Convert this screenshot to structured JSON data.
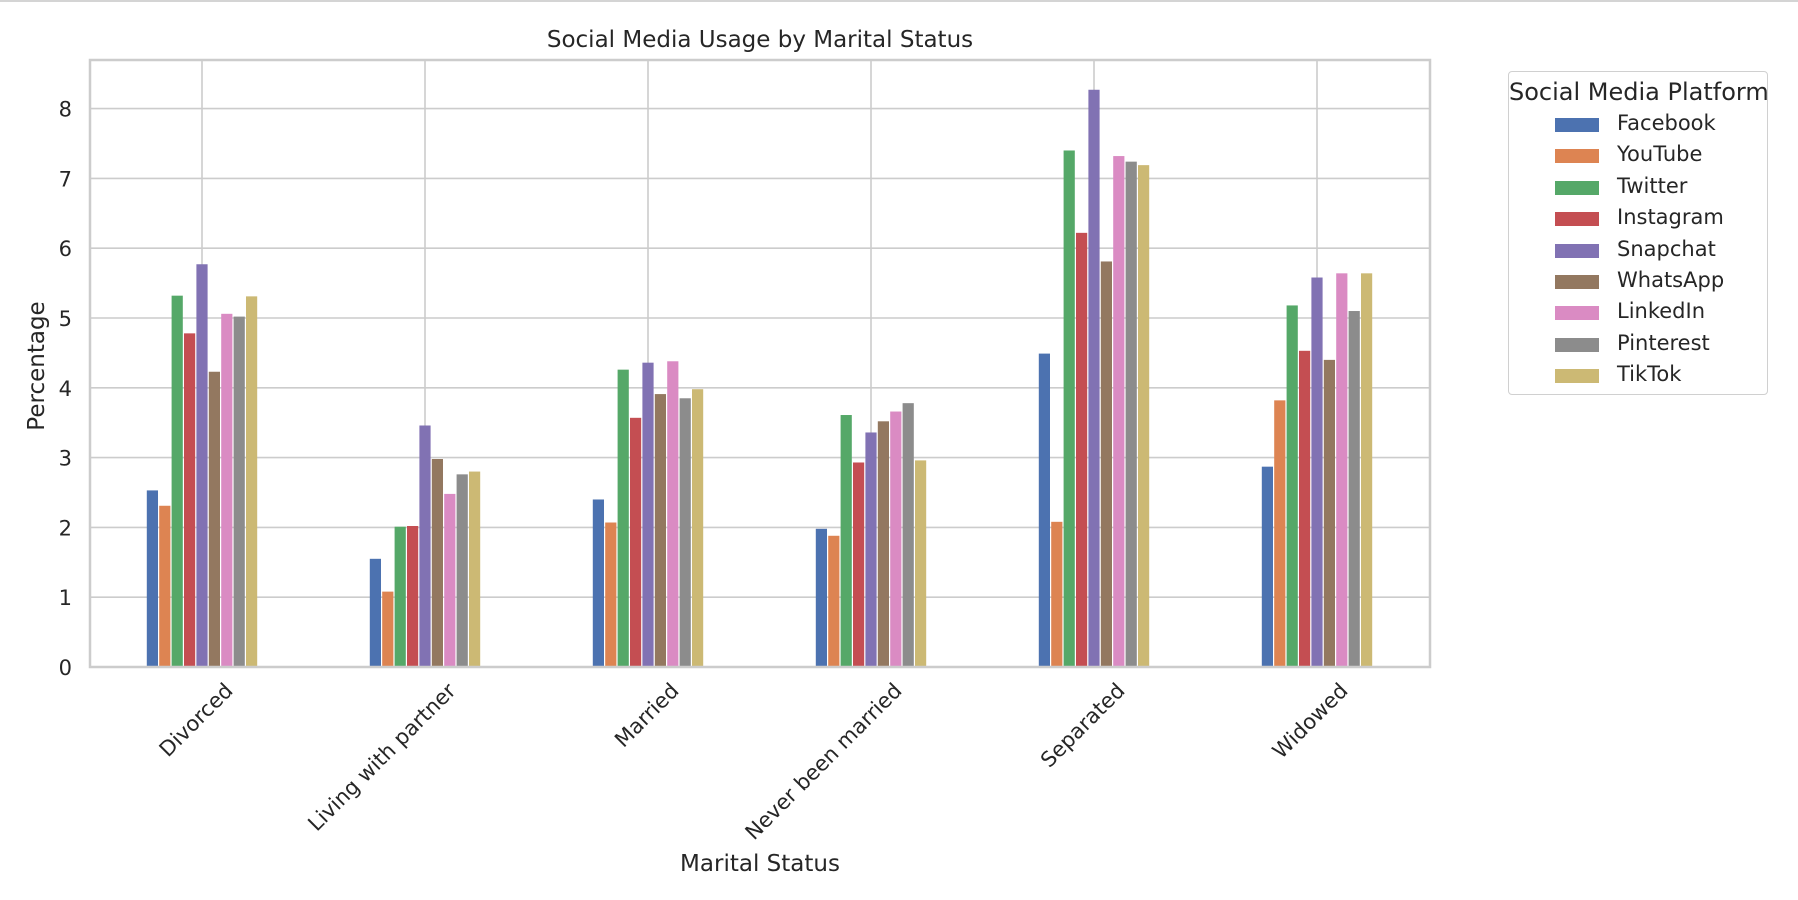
{
  "chart_data": {
    "type": "bar",
    "title": "Social Media Usage by Marital Status",
    "xlabel": "Marital Status",
    "ylabel": "Percentage",
    "ylim": [
      0,
      8.7
    ],
    "yticks": [
      "0",
      "1",
      "2",
      "3",
      "4",
      "5",
      "6",
      "7",
      "8"
    ],
    "grid": true,
    "legend_title": "Social Media Platform",
    "legend_position": "outside top-right",
    "categories": [
      "Divorced",
      "Living with partner",
      "Married",
      "Never been married",
      "Separated",
      "Widowed"
    ],
    "series": [
      {
        "name": "Facebook",
        "color": "#4c72b0",
        "values": [
          2.53,
          1.55,
          2.4,
          1.98,
          4.49,
          2.87
        ]
      },
      {
        "name": "YouTube",
        "color": "#dd8452",
        "values": [
          2.31,
          1.08,
          2.07,
          1.88,
          2.08,
          3.82
        ]
      },
      {
        "name": "Twitter",
        "color": "#55a868",
        "values": [
          5.32,
          2.01,
          4.26,
          3.61,
          7.4,
          5.18
        ]
      },
      {
        "name": "Instagram",
        "color": "#c44e52",
        "values": [
          4.78,
          2.02,
          3.57,
          2.93,
          6.22,
          4.53
        ]
      },
      {
        "name": "Snapchat",
        "color": "#8172b3",
        "values": [
          5.77,
          3.46,
          4.36,
          3.36,
          8.27,
          5.58
        ]
      },
      {
        "name": "WhatsApp",
        "color": "#937860",
        "values": [
          4.23,
          2.98,
          3.91,
          3.52,
          5.81,
          4.4
        ]
      },
      {
        "name": "LinkedIn",
        "color": "#da8bc3",
        "values": [
          5.06,
          2.48,
          4.38,
          3.66,
          7.32,
          5.64
        ]
      },
      {
        "name": "Pinterest",
        "color": "#8c8c8c",
        "values": [
          5.02,
          2.76,
          3.85,
          3.78,
          7.24,
          5.1
        ]
      },
      {
        "name": "TikTok",
        "color": "#ccb974",
        "values": [
          5.31,
          2.8,
          3.98,
          2.96,
          7.19,
          5.64
        ]
      }
    ]
  }
}
